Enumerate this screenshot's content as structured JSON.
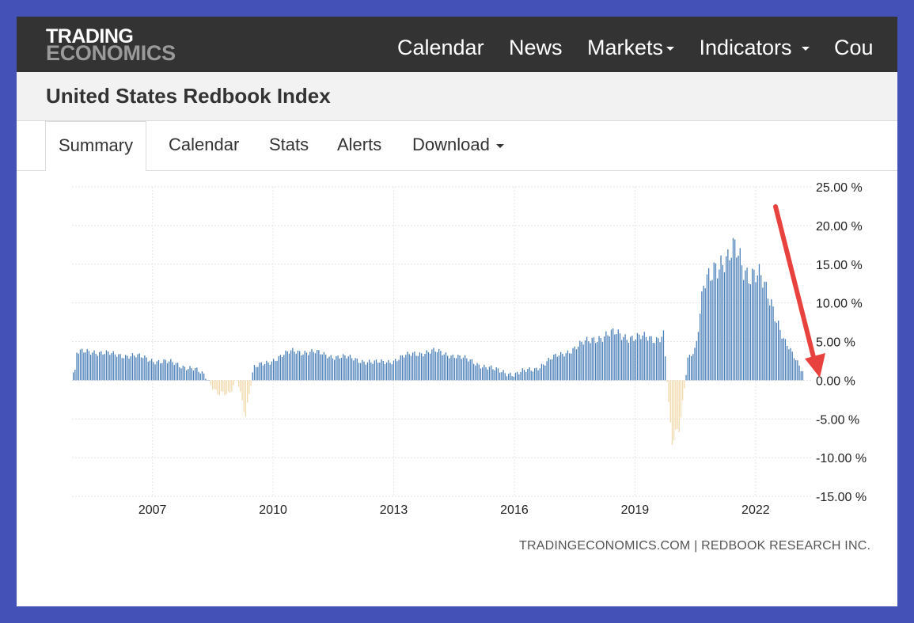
{
  "nav": {
    "logo_line1": "TRADING",
    "logo_line2": "ECONOMICS",
    "items": [
      {
        "label": "Calendar",
        "dropdown": false
      },
      {
        "label": "News",
        "dropdown": false
      },
      {
        "label": "Markets",
        "dropdown": true
      },
      {
        "label": "Indicators",
        "dropdown": true
      },
      {
        "label": "Cou",
        "dropdown": false
      }
    ]
  },
  "page": {
    "title": "United States Redbook Index"
  },
  "tabs": [
    {
      "label": "Summary",
      "active": true
    },
    {
      "label": "Calendar",
      "active": false
    },
    {
      "label": "Stats",
      "active": false
    },
    {
      "label": "Alerts",
      "active": false
    },
    {
      "label": "Download",
      "active": false,
      "dropdown": true
    }
  ],
  "source": "TRADINGECONOMICS.COM | REDBOOK RESEARCH INC.",
  "colors": {
    "positive": "#4a7fb8",
    "negative": "#f0d9aa",
    "arrow": "#e8423f",
    "navbar": "#333333"
  },
  "chart_data": {
    "type": "bar",
    "title": "",
    "xlabel": "",
    "ylabel": "",
    "x_ticks": [
      "2007",
      "2010",
      "2013",
      "2016",
      "2019",
      "2022"
    ],
    "y_ticks": [
      "25.00 %",
      "20.00 %",
      "15.00 %",
      "10.00 %",
      "5.00 %",
      "0.00 %",
      "-5.00 %",
      "-10.00 %",
      "-15.00 %"
    ],
    "ylim": [
      -15,
      25
    ],
    "xlim": [
      2005.5,
      2023.9
    ],
    "grid": true,
    "legend": "none",
    "annotation": "red arrow pointing down to latest value near 0.00 %",
    "series": [
      {
        "x": [
          2005.6,
          2006.0,
          2006.5,
          2007.0,
          2007.5,
          2008.0,
          2008.5,
          2008.8,
          2009.1,
          2009.4,
          2009.6,
          2009.8,
          2010.0,
          2010.5,
          2011.0,
          2011.5,
          2012.0,
          2012.5,
          2013.0,
          2013.5,
          2014.0,
          2014.5,
          2015.0,
          2015.5,
          2016.0,
          2016.5,
          2017.0,
          2017.5,
          2018.0,
          2018.5,
          2019.0,
          2019.5,
          2020.0,
          2020.2,
          2020.4,
          2020.6,
          2020.8,
          2021.0,
          2021.2,
          2021.5,
          2021.8,
          2022.0,
          2022.3,
          2022.6,
          2022.9,
          2023.2,
          2023.5,
          2023.7
        ],
        "values": [
          3.5,
          3.8,
          3.3,
          3.2,
          2.6,
          2.2,
          1.5,
          0.5,
          -1.5,
          -2.0,
          0.3,
          -4.5,
          1.5,
          2.7,
          3.8,
          3.6,
          3.1,
          2.8,
          2.2,
          2.6,
          3.5,
          3.7,
          3.2,
          2.3,
          1.3,
          0.8,
          1.5,
          3.0,
          4.2,
          5.5,
          6.0,
          5.5,
          5.4,
          6.0,
          -8.5,
          -6.0,
          3.0,
          4.0,
          12.0,
          15.5,
          15.0,
          17.0,
          14.0,
          13.0,
          10.0,
          5.0,
          2.5,
          1.0
        ]
      }
    ]
  }
}
